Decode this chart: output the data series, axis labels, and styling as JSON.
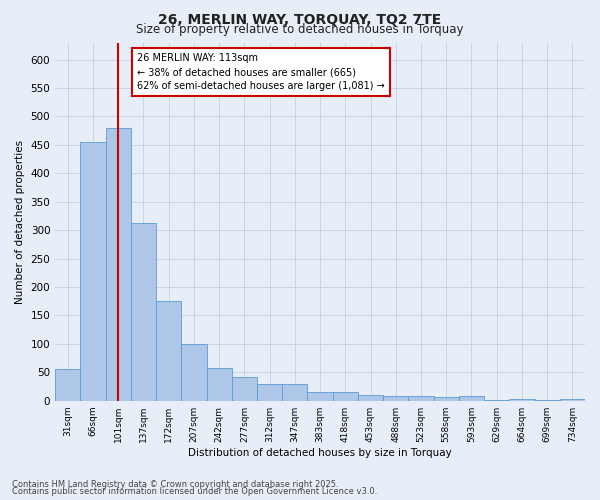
{
  "title_line1": "26, MERLIN WAY, TORQUAY, TQ2 7TE",
  "title_line2": "Size of property relative to detached houses in Torquay",
  "bar_labels": [
    "31sqm",
    "66sqm",
    "101sqm",
    "137sqm",
    "172sqm",
    "207sqm",
    "242sqm",
    "277sqm",
    "312sqm",
    "347sqm",
    "383sqm",
    "418sqm",
    "453sqm",
    "488sqm",
    "523sqm",
    "558sqm",
    "593sqm",
    "629sqm",
    "664sqm",
    "699sqm",
    "734sqm"
  ],
  "bar_values": [
    55,
    455,
    480,
    312,
    175,
    100,
    58,
    42,
    30,
    30,
    15,
    15,
    10,
    8,
    8,
    6,
    8,
    1,
    3,
    1,
    3
  ],
  "bar_color": "#aec6e8",
  "bar_edgecolor": "#5b9bd5",
  "xlabel": "Distribution of detached houses by size in Torquay",
  "ylabel": "Number of detached properties",
  "ylim": [
    0,
    630
  ],
  "yticks": [
    0,
    50,
    100,
    150,
    200,
    250,
    300,
    350,
    400,
    450,
    500,
    550,
    600
  ],
  "property_line_x": 2.0,
  "annotation_line1": "26 MERLIN WAY: 113sqm",
  "annotation_line2": "← 38% of detached houses are smaller (665)",
  "annotation_line3": "62% of semi-detached houses are larger (1,081) →",
  "vline_color": "#cc0000",
  "annotation_bg": "#ffffff",
  "annotation_border": "#cc0000",
  "grid_color": "#c8d4e8",
  "bg_color": "#e8eef8",
  "footnote1": "Contains HM Land Registry data © Crown copyright and database right 2025.",
  "footnote2": "Contains public sector information licensed under the Open Government Licence v3.0."
}
